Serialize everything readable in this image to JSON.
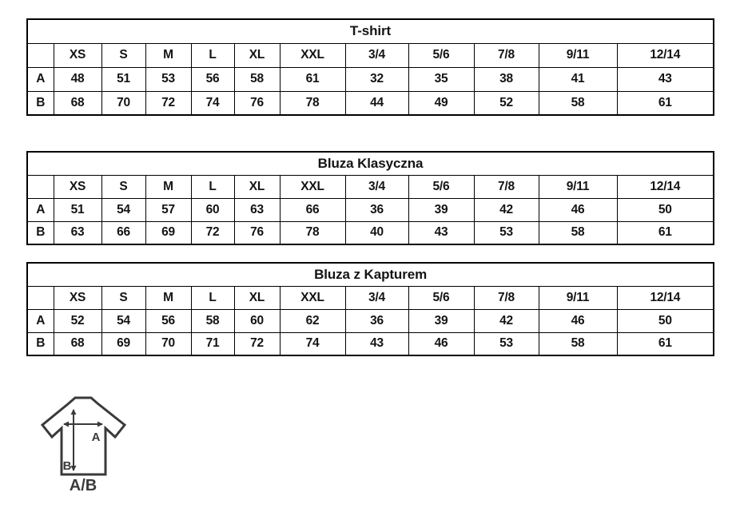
{
  "chart_data": [
    {
      "type": "table",
      "title": "T-shirt",
      "columns": [
        "",
        "XS",
        "S",
        "M",
        "L",
        "XL",
        "XXL",
        "3/4",
        "5/6",
        "7/8",
        "9/11",
        "12/14"
      ],
      "rows": [
        {
          "label": "A",
          "values": [
            48,
            51,
            53,
            56,
            58,
            61,
            32,
            35,
            38,
            41,
            43
          ]
        },
        {
          "label": "B",
          "values": [
            68,
            70,
            72,
            74,
            76,
            78,
            44,
            49,
            52,
            58,
            61
          ]
        }
      ]
    },
    {
      "type": "table",
      "title": "Bluza Klasyczna",
      "columns": [
        "",
        "XS",
        "S",
        "M",
        "L",
        "XL",
        "XXL",
        "3/4",
        "5/6",
        "7/8",
        "9/11",
        "12/14"
      ],
      "rows": [
        {
          "label": "A",
          "values": [
            51,
            54,
            57,
            60,
            63,
            66,
            36,
            39,
            42,
            46,
            50
          ]
        },
        {
          "label": "B",
          "values": [
            63,
            66,
            69,
            72,
            76,
            78,
            40,
            43,
            53,
            58,
            61
          ]
        }
      ]
    },
    {
      "type": "table",
      "title": "Bluza z Kapturem",
      "columns": [
        "",
        "XS",
        "S",
        "M",
        "L",
        "XL",
        "XXL",
        "3/4",
        "5/6",
        "7/8",
        "9/11",
        "12/14"
      ],
      "rows": [
        {
          "label": "A",
          "values": [
            52,
            54,
            56,
            58,
            60,
            62,
            36,
            39,
            42,
            46,
            50
          ]
        },
        {
          "label": "B",
          "values": [
            68,
            69,
            70,
            71,
            72,
            74,
            43,
            46,
            53,
            58,
            61
          ]
        }
      ]
    }
  ],
  "diagram": {
    "label_a": "A",
    "label_b": "B",
    "label_ab": "A/B"
  },
  "colors": {
    "table_border": "#000000",
    "text": "#141414",
    "diagram_stroke": "#3a3a3a",
    "background": "#ffffff"
  }
}
